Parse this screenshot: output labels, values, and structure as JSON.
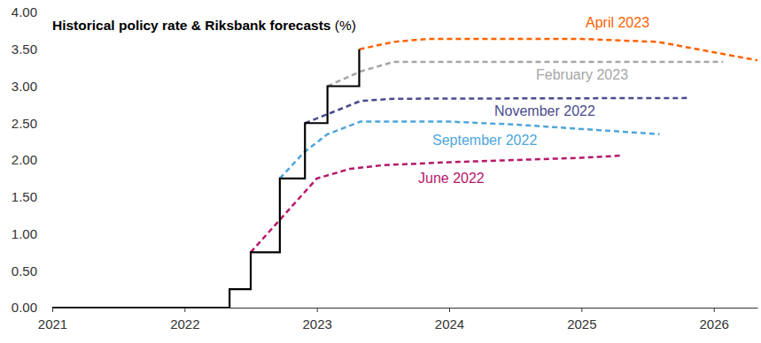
{
  "chart_data": {
    "type": "line",
    "title": "Historical policy rate & Riksbank forecasts (%)",
    "xlim": [
      2021,
      2026.33
    ],
    "xticks": [
      2021,
      2022,
      2023,
      2024,
      2025,
      2026
    ],
    "ylim": [
      0,
      4
    ],
    "yticks": [
      {
        "value": 0,
        "label": "0.00"
      },
      {
        "value": 0.5,
        "label": "0.50"
      },
      {
        "value": 1,
        "label": "1.00"
      },
      {
        "value": 1.5,
        "label": "1.50"
      },
      {
        "value": 2,
        "label": "2.00"
      },
      {
        "value": 2.5,
        "label": "2.50"
      },
      {
        "value": 3,
        "label": "3.00"
      },
      {
        "value": 3.5,
        "label": "3.50"
      },
      {
        "value": 4,
        "label": "4.00"
      }
    ],
    "grid": false,
    "series": [
      {
        "name": "June 2022",
        "color": "#b5176b",
        "line_style": "dashed",
        "type": "line",
        "x": [
          2022.5,
          2022.75,
          2023.0,
          2023.25,
          2023.5,
          2024.0,
          2024.5,
          2025.0,
          2025.3
        ],
        "values": [
          0.75,
          1.25,
          1.75,
          1.88,
          1.93,
          1.97,
          2.0,
          2.03,
          2.06
        ]
      },
      {
        "name": "September 2022",
        "color": "#4ea6dc",
        "line_style": "dashed",
        "type": "line",
        "x": [
          2022.72,
          2022.9,
          2023.08,
          2023.33,
          2024.0,
          2024.5,
          2025.0,
          2025.59
        ],
        "values": [
          1.75,
          2.1,
          2.35,
          2.52,
          2.52,
          2.48,
          2.42,
          2.35
        ]
      },
      {
        "name": "November 2022",
        "color": "#4b4b8f",
        "line_style": "dashed",
        "type": "line",
        "x": [
          2022.91,
          2023.08,
          2023.33,
          2023.58,
          2025.82
        ],
        "values": [
          2.5,
          2.62,
          2.8,
          2.83,
          2.84
        ]
      },
      {
        "name": "February 2023",
        "color": "#a6a6a6",
        "line_style": "dashed",
        "type": "line",
        "x": [
          2023.08,
          2023.33,
          2023.58,
          2026.07
        ],
        "values": [
          3.0,
          3.2,
          3.33,
          3.33
        ]
      },
      {
        "name": "April 2023",
        "color": "#ff6200",
        "line_style": "dashed",
        "type": "line",
        "x": [
          2023.32,
          2023.58,
          2023.83,
          2025.0,
          2025.58,
          2026.33
        ],
        "values": [
          3.5,
          3.6,
          3.64,
          3.64,
          3.6,
          3.35
        ]
      },
      {
        "color": "#000000",
        "line_style": "solid",
        "type": "step",
        "x": [
          2021,
          2022.34,
          2022.5,
          2022.72,
          2022.91,
          2023.08,
          2023.32
        ],
        "values": [
          0,
          0.25,
          0.75,
          1.75,
          2.5,
          3.0,
          3.5
        ]
      }
    ]
  }
}
